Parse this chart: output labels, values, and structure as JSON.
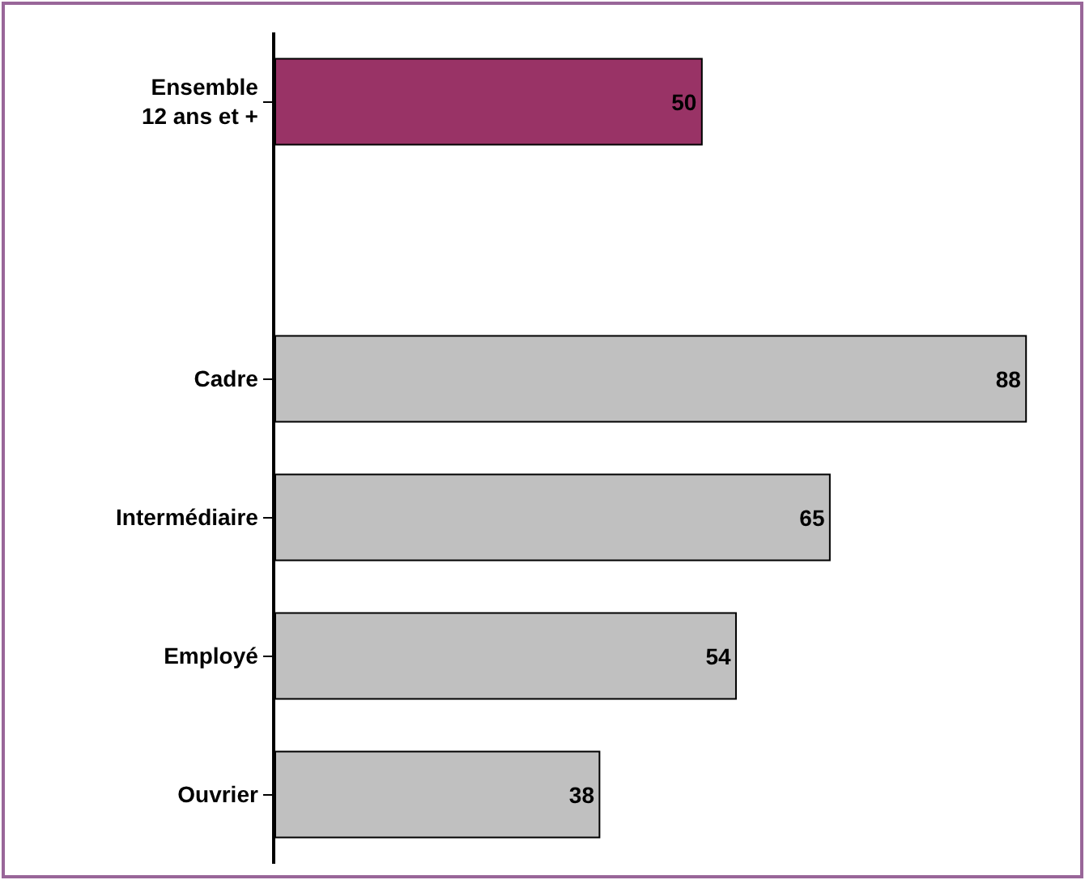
{
  "chart_data": {
    "type": "bar",
    "orientation": "horizontal",
    "categories": [
      "Ensemble 12 ans et +",
      null,
      "Cadre",
      "Intermédiaire",
      "Employé",
      "Ouvrier"
    ],
    "values": [
      50,
      null,
      88,
      65,
      54,
      38
    ],
    "colors": [
      "#993366",
      "#c0c0c0",
      "#c0c0c0",
      "#c0c0c0",
      "#c0c0c0",
      "#c0c0c0"
    ],
    "data_labels": true
  }
}
